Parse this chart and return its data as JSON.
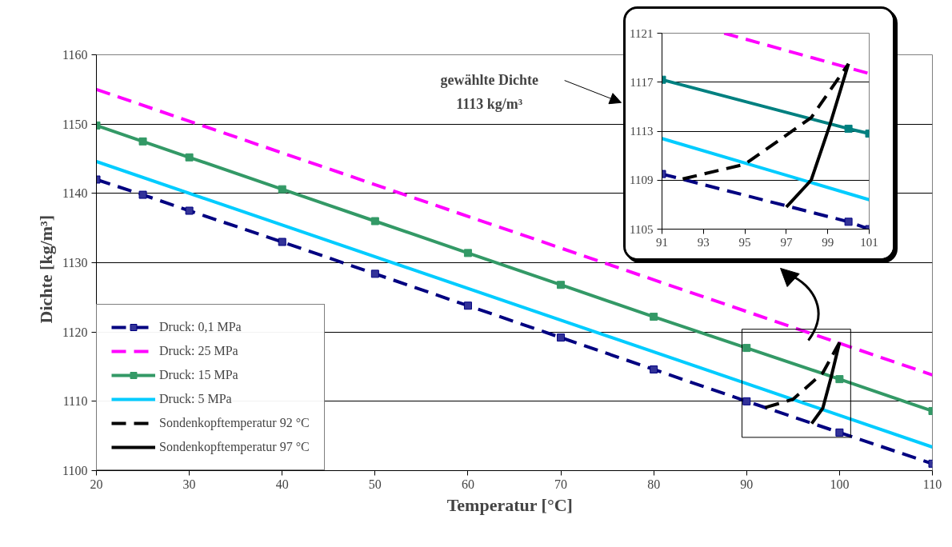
{
  "chart_data": [
    {
      "type": "line",
      "xlabel": "Temperatur   [°C]",
      "ylabel": "Dichte    [kg/m³]",
      "x": [
        20,
        25,
        30,
        40,
        50,
        60,
        70,
        80,
        90,
        100,
        110
      ],
      "series": [
        {
          "name": "Druck: 0,1 MPa",
          "color": "#000080",
          "line_style": "dashed",
          "marker": "square",
          "values": [
            1142,
            1139.8,
            1137.5,
            1133,
            1128.4,
            1123.8,
            1119.2,
            1114.6,
            1110,
            1105.5,
            1101
          ]
        },
        {
          "name": "Druck: 25 MPa",
          "color": "#ff00ff",
          "line_style": "dashed",
          "marker": "none",
          "x": [
            20,
            110
          ],
          "values": [
            1155,
            1113.8
          ]
        },
        {
          "name": "Druck: 15 MPa",
          "color": "#339966",
          "line_style": "solid",
          "marker": "square",
          "values": [
            1149.8,
            1147.5,
            1145.2,
            1140.6,
            1136,
            1131.4,
            1126.8,
            1122.2,
            1117.7,
            1113.2,
            1108.6
          ]
        },
        {
          "name": "Druck: 5 MPa",
          "color": "#00ccff",
          "line_style": "solid",
          "marker": "none",
          "x": [
            20,
            110
          ],
          "values": [
            1144.6,
            1103.4
          ]
        },
        {
          "name": "Sondenkopftemperatur 92 °C",
          "color": "#000000",
          "line_style": "dashed",
          "marker": "none",
          "x": [
            92,
            95,
            98.2,
            100
          ],
          "values": [
            1109.1,
            1110.3,
            1114.1,
            1118.5
          ]
        },
        {
          "name": "Sondenkopftemperatur 97 °C",
          "color": "#000000",
          "line_style": "solid",
          "marker": "none",
          "x": [
            97,
            98.2,
            99.1,
            100
          ],
          "values": [
            1106.8,
            1109,
            1113.5,
            1118.5
          ]
        }
      ],
      "xlim": [
        20,
        110
      ],
      "ylim": [
        1100,
        1160
      ],
      "xticks": [
        20,
        30,
        40,
        50,
        60,
        70,
        80,
        90,
        100,
        110
      ],
      "yticks": [
        1100,
        1110,
        1120,
        1130,
        1140,
        1150,
        1160
      ],
      "grid": "y",
      "legend": "bottom left",
      "annotations": [
        "gewählte Dichte\n1113 kg/m³"
      ]
    },
    {
      "type": "line",
      "x": [
        91,
        100,
        101
      ],
      "series": [
        {
          "color": "#000080",
          "line_style": "dashed",
          "marker": "square",
          "values": [
            1109.5,
            1105.6,
            1105
          ]
        },
        {
          "color": "#ff00ff",
          "line_style": "dashed",
          "marker": "none",
          "x": [
            94,
            101
          ],
          "values": [
            1121,
            1117.7
          ]
        },
        {
          "color": "#008080",
          "line_style": "solid",
          "marker": "square",
          "values": [
            1117.2,
            1113.2,
            1112.8
          ]
        },
        {
          "color": "#00ccff",
          "line_style": "solid",
          "marker": "none",
          "x": [
            91,
            101
          ],
          "values": [
            1112.4,
            1107.4
          ]
        },
        {
          "color": "#000000",
          "line_style": "dashed",
          "marker": "none",
          "x": [
            92,
            95,
            98.2,
            100
          ],
          "values": [
            1109.1,
            1110.3,
            1114.1,
            1118.5
          ]
        },
        {
          "color": "#000000",
          "line_style": "solid",
          "marker": "none",
          "x": [
            97,
            98.2,
            99.1,
            100
          ],
          "values": [
            1106.8,
            1109,
            1113.5,
            1118.5
          ]
        }
      ],
      "xlim": [
        91,
        101
      ],
      "ylim": [
        1105,
        1121
      ],
      "xticks": [
        91,
        93,
        95,
        97,
        99,
        101
      ],
      "yticks": [
        1105,
        1109,
        1113,
        1117,
        1121
      ],
      "grid": "y"
    }
  ]
}
